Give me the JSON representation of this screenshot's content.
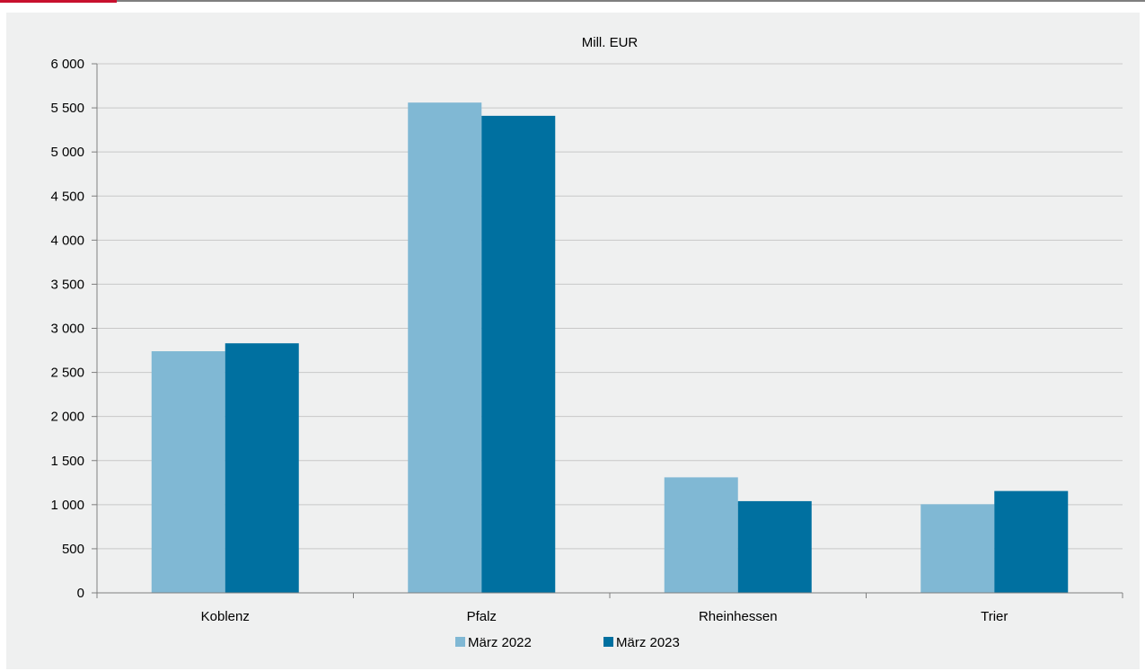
{
  "colors": {
    "accent": "#c8102e",
    "header_rule": "#7f7f7f",
    "background": "#eff0f0",
    "grid": "#c8c8c8",
    "axis": "#7f7f7f",
    "series_2022": "#80b8d4",
    "series_2023": "#0070a0"
  },
  "chart_data": {
    "type": "bar",
    "title": "Mill. EUR",
    "xlabel": "",
    "ylabel": "",
    "categories": [
      "Koblenz",
      "Pfalz",
      "Rheinhessen",
      "Trier"
    ],
    "series": [
      {
        "name": "März 2022",
        "values": [
          2740,
          5560,
          1310,
          1005
        ]
      },
      {
        "name": "März 2023",
        "values": [
          2830,
          5410,
          1040,
          1155
        ]
      }
    ],
    "ylim": [
      0,
      6000
    ],
    "yticks": [
      0,
      500,
      1000,
      1500,
      2000,
      2500,
      3000,
      3500,
      4000,
      4500,
      5000,
      5500,
      6000
    ],
    "ytick_labels": [
      "0",
      "500",
      "1 000",
      "1 500",
      "2 000",
      "2 500",
      "3 000",
      "3 500",
      "4 000",
      "4 500",
      "5 000",
      "5 500",
      "6 000"
    ],
    "grid": true,
    "legend_position": "bottom-center"
  }
}
